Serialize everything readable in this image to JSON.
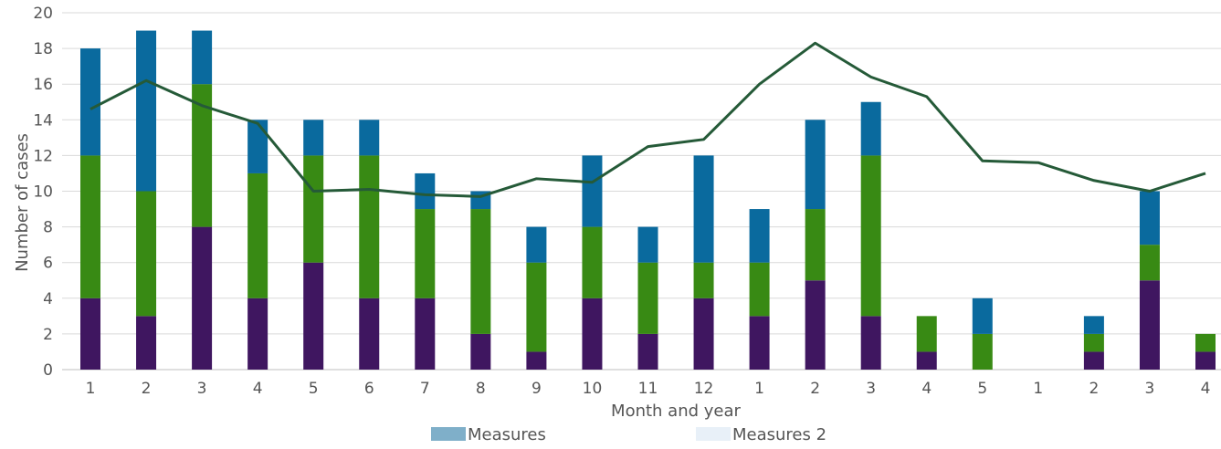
{
  "chart_data": {
    "type": "bar",
    "stacked": true,
    "xlabel": "Month and year",
    "ylabel": "Number of cases",
    "ylim": [
      0,
      20
    ],
    "ytick_step": 2,
    "grid": "horizontal",
    "categories": [
      "1",
      "2",
      "3",
      "4",
      "5",
      "6",
      "7",
      "8",
      "9",
      "10",
      "11",
      "12",
      "1",
      "2",
      "3",
      "4",
      "5",
      "1",
      "2",
      "3",
      "4"
    ],
    "series": [
      {
        "color": "#3f1660",
        "values": [
          4,
          3,
          8,
          4,
          6,
          4,
          4,
          2,
          1,
          4,
          2,
          4,
          3,
          5,
          3,
          1,
          0,
          0,
          1,
          5,
          1
        ]
      },
      {
        "color": "#388a14",
        "values": [
          8,
          7,
          8,
          7,
          6,
          8,
          5,
          7,
          5,
          4,
          4,
          2,
          3,
          4,
          9,
          2,
          2,
          0,
          1,
          2,
          1
        ]
      },
      {
        "color": "#0a6a9e",
        "values": [
          6,
          9,
          3,
          3,
          2,
          2,
          2,
          1,
          2,
          4,
          2,
          6,
          3,
          5,
          3,
          0,
          2,
          0,
          1,
          3,
          0
        ]
      }
    ],
    "line": {
      "color": "#255a38",
      "values": [
        14.6,
        16.2,
        14.8,
        13.8,
        10.0,
        10.1,
        9.8,
        9.7,
        10.7,
        10.5,
        12.5,
        12.9,
        16.0,
        18.3,
        16.4,
        15.3,
        11.7,
        11.6,
        10.6,
        10.0,
        11.0
      ]
    },
    "legend": {
      "position": "bottom",
      "entries": [
        {
          "name": "Measures",
          "color": "#7fafc9"
        },
        {
          "name": "Measures 2",
          "color": "#e8f0f8"
        }
      ]
    }
  }
}
